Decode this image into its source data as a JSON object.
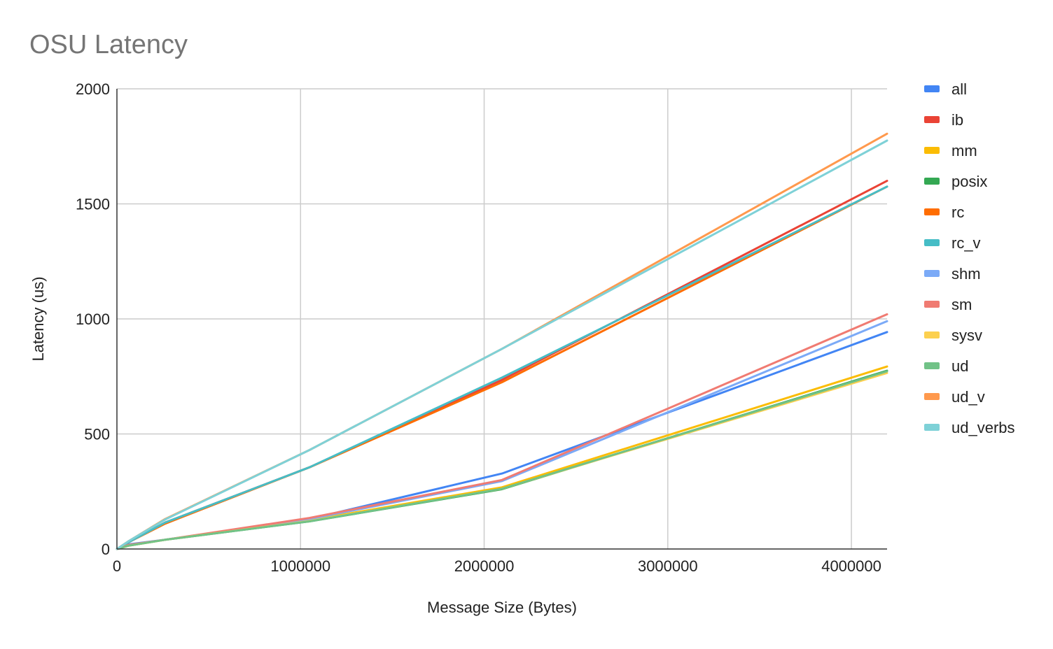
{
  "chart_data": {
    "type": "line",
    "title": "OSU Latency",
    "xlabel": "Message Size (Bytes)",
    "ylabel": "Latency (us)",
    "xlim": [
      0,
      4194304
    ],
    "ylim": [
      0,
      2000
    ],
    "x_ticks": [
      0,
      1000000,
      2000000,
      3000000,
      4000000
    ],
    "x_tick_labels": [
      "0",
      "1000000",
      "2000000",
      "3000000",
      "4000000"
    ],
    "y_ticks": [
      0,
      500,
      1000,
      1500,
      2000
    ],
    "y_tick_labels": [
      "0",
      "500",
      "1000",
      "1500",
      "2000"
    ],
    "grid": true,
    "legend_position": "right",
    "x": [
      0,
      65536,
      262144,
      1048576,
      2097152,
      4194304
    ],
    "series": [
      {
        "name": "all",
        "color": "#4285f4",
        "values": [
          0,
          20,
          40,
          130,
          328,
          943
        ]
      },
      {
        "name": "ib",
        "color": "#ea4335",
        "values": [
          0,
          30,
          115,
          355,
          735,
          1600
        ]
      },
      {
        "name": "mm",
        "color": "#fbbc04",
        "values": [
          0,
          15,
          40,
          125,
          268,
          793
        ]
      },
      {
        "name": "posix",
        "color": "#34a853",
        "values": [
          0,
          15,
          40,
          120,
          260,
          775
        ]
      },
      {
        "name": "rc",
        "color": "#ff6d01",
        "values": [
          0,
          30,
          110,
          355,
          725,
          1575
        ]
      },
      {
        "name": "rc_v",
        "color": "#46bdc6",
        "values": [
          0,
          30,
          115,
          355,
          745,
          1575
        ]
      },
      {
        "name": "shm",
        "color": "#7baaf7",
        "values": [
          0,
          18,
          40,
          130,
          295,
          990
        ]
      },
      {
        "name": "sm",
        "color": "#f07b72",
        "values": [
          0,
          18,
          40,
          135,
          300,
          1020
        ]
      },
      {
        "name": "sysv",
        "color": "#fcd04f",
        "values": [
          0,
          15,
          40,
          122,
          262,
          765
        ]
      },
      {
        "name": "ud",
        "color": "#71c287",
        "values": [
          0,
          15,
          40,
          120,
          262,
          772
        ]
      },
      {
        "name": "ud_v",
        "color": "#ff994d",
        "values": [
          0,
          35,
          130,
          430,
          870,
          1805
        ]
      },
      {
        "name": "ud_verbs",
        "color": "#7ed1d7",
        "values": [
          0,
          35,
          128,
          430,
          870,
          1775
        ]
      }
    ]
  }
}
